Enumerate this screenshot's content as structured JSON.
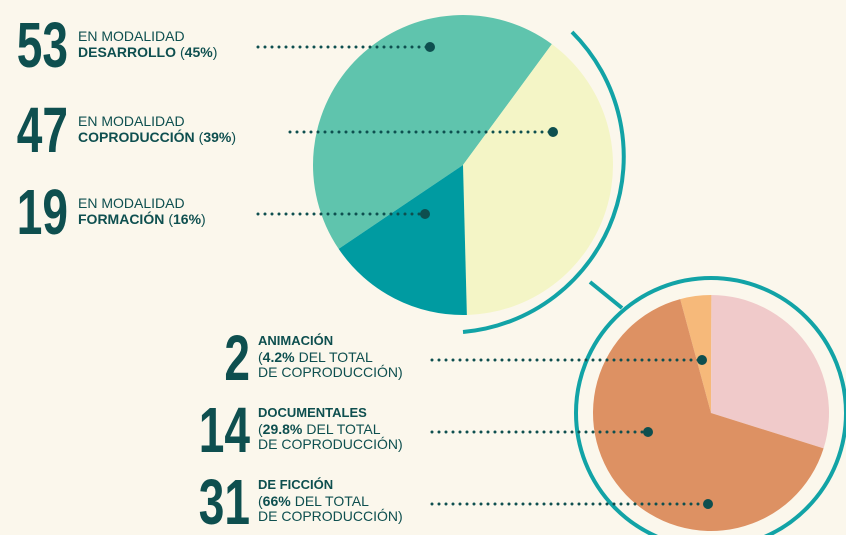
{
  "chart_data": [
    {
      "type": "pie",
      "label_prefix": "EN MODALIDAD",
      "categories": [
        "DESARROLLO",
        "COPRODUCCIÓN",
        "FORMACIÓN"
      ],
      "values": [
        53,
        47,
        19
      ],
      "shares": [
        45,
        39,
        16
      ],
      "share_labels": [
        "45%",
        "39%",
        "16%"
      ],
      "brackets": [
        "(",
        ")"
      ],
      "colors": [
        "#5fc4ad",
        "#f4f5c6",
        "#009ba1"
      ]
    },
    {
      "type": "pie",
      "categories": [
        "ANIMACIÓN",
        "DOCUMENTALES",
        "DE FICCIÓN"
      ],
      "values": [
        2,
        14,
        31
      ],
      "shares": [
        4.2,
        29.8,
        66
      ],
      "share_labels": [
        "4.2%",
        "29.8%",
        "66%"
      ],
      "share_note": [
        "DEL TOTAL",
        "DE COPRODUCCIÓN"
      ],
      "brackets": [
        "(",
        ")"
      ],
      "colors": [
        "#f6b97a",
        "#f0caca",
        "#dd9163"
      ]
    }
  ]
}
